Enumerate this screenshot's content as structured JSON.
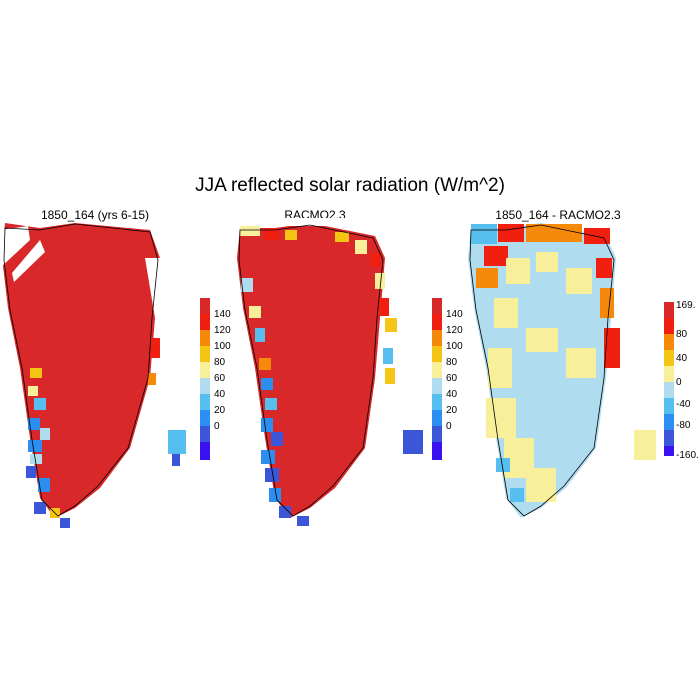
{
  "title": "JJA reflected solar radiation (W/m^2)",
  "panels": [
    {
      "title": "1850_164 (yrs 6-15)",
      "legend": {
        "labels": [
          "0",
          "20",
          "40",
          "60",
          "80",
          "100",
          "120",
          "140"
        ],
        "colors": [
          "#3a12f0",
          "#3b56d8",
          "#2b8ef0",
          "#56bff0",
          "#b0dcf0",
          "#f7ef9a",
          "#f5c516",
          "#f58a0a",
          "#f01f10",
          "#d8282a"
        ]
      },
      "dominant_value": "> 140 over most of the ice sheet"
    },
    {
      "title": "RACMO2.3",
      "legend": {
        "labels": [
          "0",
          "20",
          "40",
          "60",
          "80",
          "100",
          "120",
          "140"
        ],
        "colors": [
          "#3a12f0",
          "#3b56d8",
          "#2b8ef0",
          "#56bff0",
          "#b0dcf0",
          "#f7ef9a",
          "#f5c516",
          "#f58a0a",
          "#f01f10",
          "#d8282a"
        ]
      },
      "dominant_value": "> 140 over most of the ice sheet"
    },
    {
      "title": "1850_164 - RACMO2.3",
      "legend": {
        "labels": [
          "169.",
          "80",
          "40",
          "0",
          "-40",
          "-80",
          "-160."
        ],
        "colors": [
          "#3a12f0",
          "#3b56d8",
          "#2b8ef0",
          "#56bff0",
          "#b0dcf0",
          "#f7ef9a",
          "#f5c516",
          "#f58a0a",
          "#f01f10",
          "#d8282a"
        ]
      },
      "dominant_value": "-20 to 20 over most of the ice sheet"
    }
  ]
}
